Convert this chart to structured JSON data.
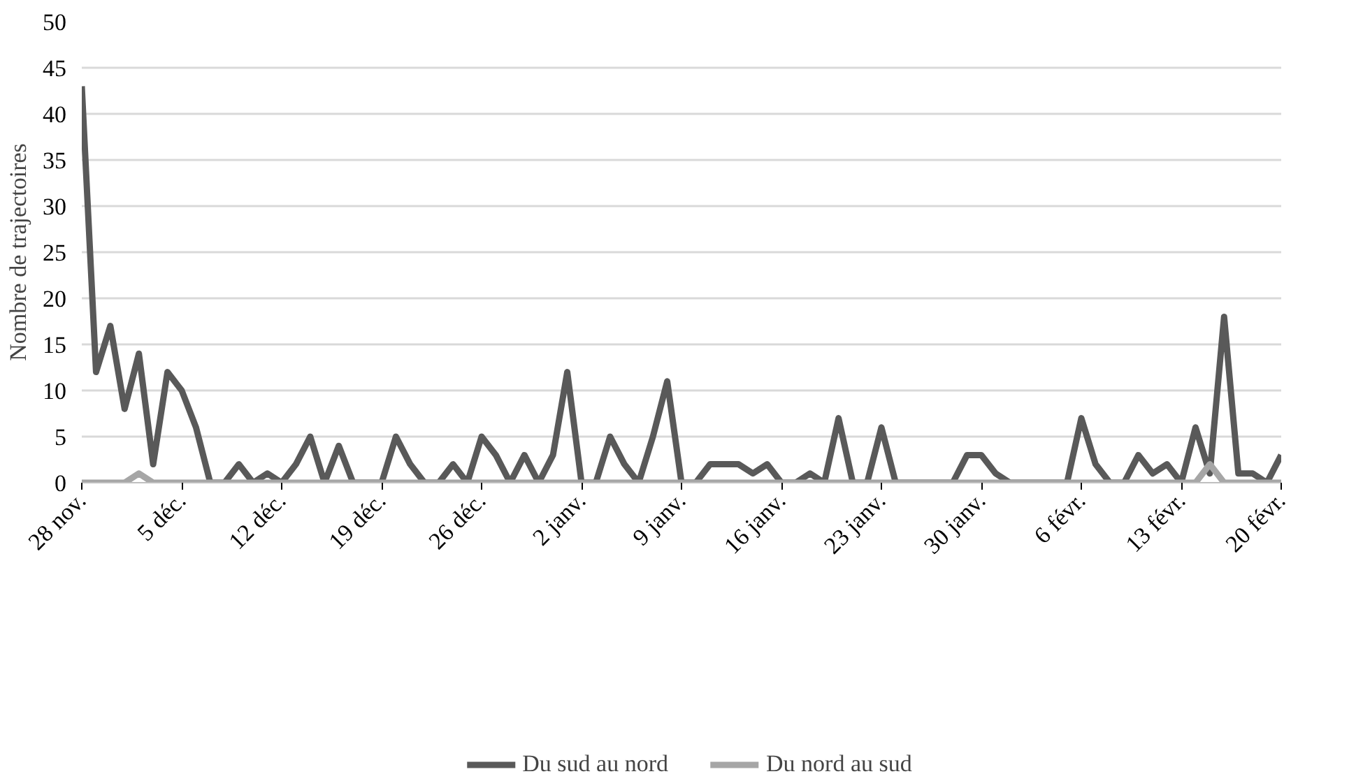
{
  "chart_data": {
    "type": "line",
    "ylabel": "Nombre de trajectoires",
    "categories": [
      "28 nov.",
      null,
      null,
      null,
      null,
      null,
      null,
      "5 déc.",
      null,
      null,
      null,
      null,
      null,
      null,
      "12 déc.",
      null,
      null,
      null,
      null,
      null,
      null,
      "19 déc.",
      null,
      null,
      null,
      null,
      null,
      null,
      "26 déc.",
      null,
      null,
      null,
      null,
      null,
      null,
      "2 janv.",
      null,
      null,
      null,
      null,
      null,
      null,
      "9 janv.",
      null,
      null,
      null,
      null,
      null,
      null,
      "16 janv.",
      null,
      null,
      null,
      null,
      null,
      null,
      "23 janv.",
      null,
      null,
      null,
      null,
      null,
      null,
      "30 janv.",
      null,
      null,
      null,
      null,
      null,
      null,
      "6 févr.",
      null,
      null,
      null,
      null,
      null,
      null,
      "13 févr.",
      null,
      null,
      null,
      null,
      null,
      null,
      "20 févr."
    ],
    "series": [
      {
        "name": "Du sud au nord",
        "color": "#595959",
        "values": [
          43,
          12,
          17,
          8,
          14,
          2,
          12,
          10,
          6,
          0,
          0,
          2,
          0,
          1,
          0,
          2,
          5,
          0,
          4,
          0,
          0,
          0,
          5,
          2,
          0,
          0,
          2,
          0,
          5,
          3,
          0,
          3,
          0,
          3,
          12,
          0,
          0,
          5,
          2,
          0,
          5,
          11,
          0,
          0,
          2,
          2,
          2,
          1,
          2,
          0,
          0,
          1,
          0,
          7,
          0,
          0,
          6,
          0,
          0,
          0,
          0,
          0,
          3,
          3,
          1,
          0,
          0,
          0,
          0,
          0,
          7,
          2,
          0,
          0,
          3,
          1,
          2,
          0,
          6,
          1,
          18,
          1,
          1,
          0,
          3
        ]
      },
      {
        "name": "Du nord au sud",
        "color": "#a6a6a6",
        "values": [
          0,
          0,
          0,
          0,
          1,
          0,
          0,
          0,
          0,
          0,
          0,
          0,
          0,
          0,
          0,
          0,
          0,
          0,
          0,
          0,
          0,
          0,
          0,
          0,
          0,
          0,
          0,
          0,
          0,
          0,
          0,
          0,
          0,
          0,
          0,
          0,
          0,
          0,
          0,
          0,
          0,
          0,
          0,
          0,
          0,
          0,
          0,
          0,
          0,
          0,
          0,
          0,
          0,
          0,
          0,
          0,
          0,
          0,
          0,
          0,
          0,
          0,
          0,
          0,
          0,
          0,
          0,
          0,
          0,
          0,
          0,
          0,
          0,
          0,
          0,
          0,
          0,
          0,
          0,
          2,
          0,
          0,
          0,
          0,
          0
        ]
      }
    ],
    "ylim": [
      0,
      50
    ],
    "yticks": [
      0,
      5,
      10,
      15,
      20,
      25,
      30,
      35,
      40,
      45,
      50
    ],
    "grid": "y",
    "legend": "bottom",
    "line_style": "solid",
    "marker": "none"
  }
}
